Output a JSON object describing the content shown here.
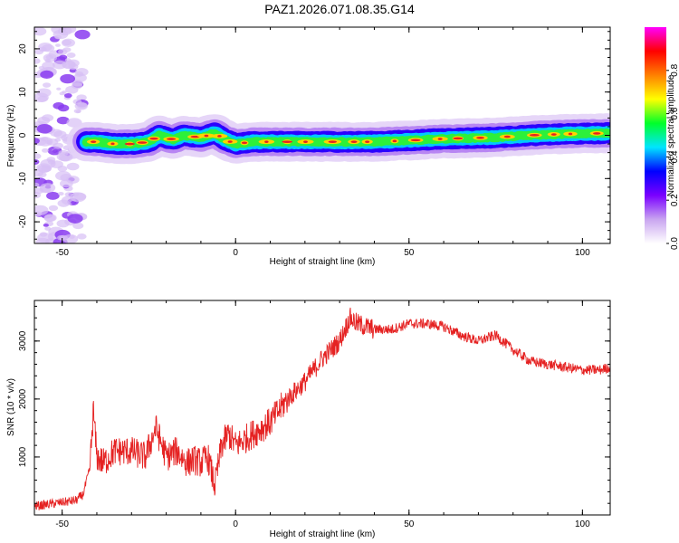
{
  "page_title": "PAZ1.2026.071.08.35.G14",
  "colors": {
    "series_line": "#e52222",
    "ridge": "#e52222"
  },
  "colorbar": {
    "label": "Normalized spectral amplitude",
    "ticks": [
      "0.0",
      "0.2",
      "0.4",
      "0.6",
      "0.8"
    ],
    "tick_values": [
      0.0,
      0.2,
      0.4,
      0.6,
      0.8
    ],
    "range": [
      0,
      1
    ],
    "colormap": [
      "#ffffff",
      "#c9a5f0",
      "#7a00ff",
      "#0000ff",
      "#00e5ff",
      "#00ff2a",
      "#ffff00",
      "#ff8000",
      "#ff0000",
      "#ff00ff"
    ]
  },
  "chart_data": [
    {
      "type": "heatmap",
      "title": "",
      "xlabel": "Height of straight line (km)",
      "ylabel": "Frequency (Hz)",
      "xlim": [
        -58,
        108
      ],
      "ylim": [
        -25,
        25
      ],
      "xticks": [
        -50,
        0,
        50,
        100
      ],
      "xtick_labels": [
        "-50",
        "0",
        "50",
        "100"
      ],
      "yticks": [
        -20,
        -10,
        0,
        10,
        20
      ],
      "ytick_labels": [
        "-20",
        "-10",
        "0",
        "10",
        "20"
      ],
      "ridge": {
        "x": [
          -43,
          -40,
          -35,
          -30,
          -25,
          -22,
          -18,
          -15,
          -10,
          -6,
          -3,
          0,
          5,
          10,
          20,
          30,
          40,
          50,
          60,
          75,
          85,
          95,
          108
        ],
        "y": [
          -1.5,
          -1.5,
          -2,
          -2,
          -1.5,
          0,
          -1,
          0,
          -0.5,
          0.5,
          -1,
          -2,
          -1.5,
          -1.5,
          -1.5,
          -1.5,
          -1.5,
          -1.2,
          -0.8,
          -0.5,
          0,
          0.3,
          0.5
        ]
      }
    },
    {
      "type": "line",
      "title": "",
      "xlabel": "Height of straight line (km)",
      "ylabel": "SNR (10 * v/v)",
      "xlim": [
        -58,
        108
      ],
      "ylim": [
        0,
        3700
      ],
      "xticks": [
        -50,
        0,
        50,
        100
      ],
      "xtick_labels": [
        "-50",
        "0",
        "50",
        "100"
      ],
      "yticks": [
        1000,
        2000,
        3000
      ],
      "ytick_labels": [
        "1000",
        "2000",
        "3000"
      ],
      "series": [
        {
          "x": [
            -58,
            -52,
            -46,
            -44,
            -42,
            -41,
            -40,
            -38,
            -35,
            -30,
            -26,
            -23,
            -20,
            -17,
            -14,
            -12,
            -10,
            -8,
            -6,
            -4,
            -2,
            0,
            5,
            10,
            15,
            20,
            25,
            30,
            33,
            35,
            40,
            45,
            50,
            55,
            60,
            65,
            70,
            75,
            80,
            85,
            90,
            95,
            100,
            105,
            108
          ],
          "y": [
            150,
            200,
            250,
            350,
            800,
            1800,
            1000,
            900,
            1100,
            1100,
            1000,
            1500,
            1000,
            1100,
            900,
            950,
            900,
            1000,
            500,
            1200,
            1400,
            1200,
            1400,
            1600,
            2000,
            2300,
            2700,
            3000,
            3400,
            3300,
            3200,
            3200,
            3300,
            3300,
            3250,
            3100,
            3000,
            3100,
            2850,
            2650,
            2600,
            2550,
            2500,
            2500,
            2550
          ]
        }
      ]
    }
  ]
}
